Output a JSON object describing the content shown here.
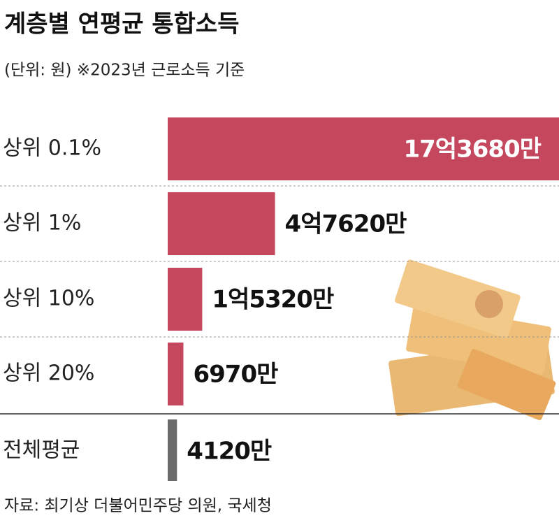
{
  "chart_data": {
    "type": "bar",
    "orientation": "horizontal",
    "title": "계층별 연평균 통합소득",
    "subtitle": "(단위: 원) ※2023년 근로소득 기준",
    "source": "자료: 최기상 더불어민주당 의원, 국세청",
    "categories": [
      "상위 0.1%",
      "상위 1%",
      "상위 10%",
      "상위 20%",
      "전체평균"
    ],
    "values": [
      1736800000,
      476200000,
      153200000,
      69700000,
      41200000
    ],
    "value_labels": [
      "17억3680만",
      "4억7620만",
      "1억5320만",
      "6970만",
      "4120만"
    ],
    "colors": [
      "#c4475e",
      "#c4475e",
      "#c4475e",
      "#c4475e",
      "#6b6b6b"
    ]
  }
}
